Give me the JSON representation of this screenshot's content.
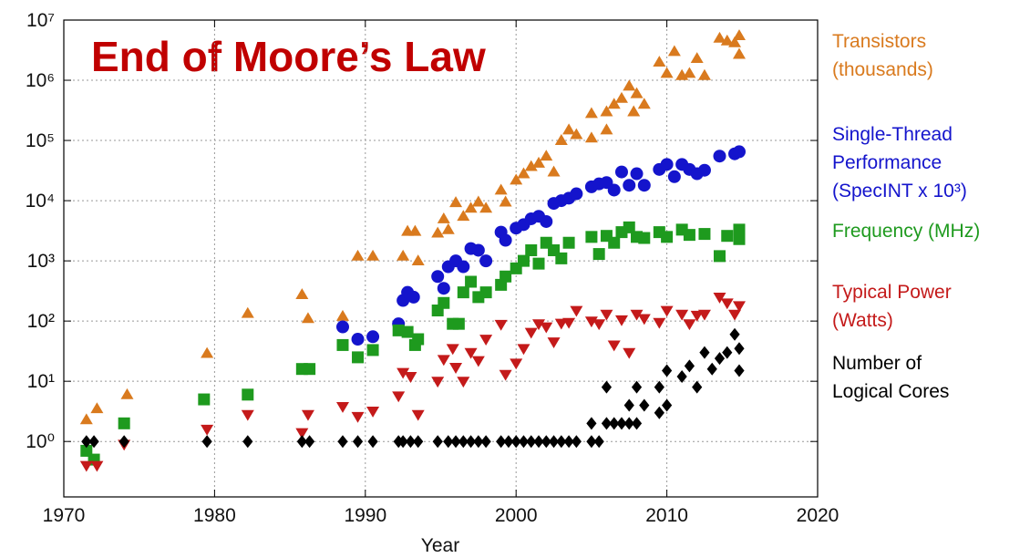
{
  "chart_data": {
    "type": "scatter",
    "annotation": "End of Moore’s Law",
    "xlabel": "Year",
    "xlim": [
      1970,
      2020
    ],
    "xticks": [
      1970,
      1980,
      1990,
      2000,
      2010,
      2020
    ],
    "log_y": true,
    "grid": true,
    "ylim": [
      0.12,
      10000000
    ],
    "yticks": [
      {
        "value": 1,
        "label": "10⁰"
      },
      {
        "value": 10,
        "label": "10¹"
      },
      {
        "value": 100,
        "label": "10²"
      },
      {
        "value": 1000,
        "label": "10³"
      },
      {
        "value": 10000,
        "label": "10⁴"
      },
      {
        "value": 100000,
        "label": "10⁵"
      },
      {
        "value": 1000000,
        "label": "10⁶"
      },
      {
        "value": 10000000,
        "label": "10⁷"
      }
    ],
    "series": [
      {
        "name": "Transistors\n(thousands)",
        "color": "#d97a1e",
        "marker": "triangle-up",
        "x": [
          1971.5,
          1972.2,
          1974.2,
          1979.5,
          1982.2,
          1985.8,
          1986.2,
          1988.5,
          1989.5,
          1990.5,
          1992.5,
          1992.8,
          1993.3,
          1993.5,
          1994.8,
          1995.2,
          1995.5,
          1996,
          1996.5,
          1997,
          1997.5,
          1998,
          1999,
          1999.3,
          2000,
          2000.5,
          2001,
          2001.5,
          2002,
          2002.5,
          2003,
          2003.5,
          2004,
          2005,
          2005,
          2006,
          2006,
          2006.5,
          2007,
          2007.5,
          2007.8,
          2008,
          2008.5,
          2009.5,
          2010,
          2010.5,
          2011,
          2011.5,
          2012,
          2012.5,
          2013.5,
          2014,
          2014.5,
          2014.8,
          2014.8
        ],
        "values": [
          2.3,
          3.5,
          6,
          29,
          134,
          275,
          110,
          120,
          1200,
          1200,
          1200,
          3100,
          3100,
          1000,
          2900,
          5000,
          3300,
          9300,
          5500,
          7500,
          9500,
          7500,
          15000,
          9500,
          22000,
          28000,
          37000,
          42000,
          55000,
          30000,
          100000,
          150000,
          125000,
          280000,
          110000,
          300000,
          150000,
          400000,
          500000,
          800000,
          300000,
          600000,
          400000,
          2000000,
          1300000,
          3000000,
          1200000,
          1300000,
          2300000,
          1200000,
          5000000,
          4500000,
          4200000,
          5500000,
          2700000
        ]
      },
      {
        "name": "Single-Thread\nPerformance\n(SpecINT x 10³)",
        "color": "#1414cc",
        "marker": "circle",
        "x": [
          1988.5,
          1989.5,
          1990.5,
          1992.2,
          1992.5,
          1992.8,
          1993.2,
          1994.8,
          1995.2,
          1995.5,
          1996,
          1996.5,
          1997,
          1997.5,
          1998,
          1999,
          1999.3,
          2000,
          2000.5,
          2001,
          2001.5,
          2002,
          2002.5,
          2003,
          2003.5,
          2004,
          2005,
          2005.5,
          2006,
          2006.5,
          2007,
          2007.5,
          2008,
          2008.5,
          2009.5,
          2010,
          2010.5,
          2011,
          2011.5,
          2012,
          2012.5,
          2013.5,
          2014.5,
          2014.8
        ],
        "values": [
          80,
          50,
          55,
          90,
          220,
          300,
          250,
          550,
          350,
          800,
          1000,
          800,
          1600,
          1500,
          1000,
          3000,
          2200,
          3500,
          4000,
          5000,
          5500,
          4500,
          9000,
          10000,
          11000,
          13000,
          17000,
          19000,
          20000,
          15000,
          30000,
          18000,
          28000,
          18000,
          33000,
          40000,
          25000,
          40000,
          33000,
          28000,
          32000,
          55000,
          60000,
          65000
        ]
      },
      {
        "name": "Frequency (MHz)",
        "color": "#1e9a1e",
        "marker": "square",
        "x": [
          1971.5,
          1972,
          1974,
          1979.3,
          1982.2,
          1985.8,
          1986.3,
          1988.5,
          1989.5,
          1990.5,
          1992.2,
          1992.8,
          1993.3,
          1993.5,
          1994.8,
          1995.2,
          1995.8,
          1996.2,
          1996.5,
          1997,
          1997.5,
          1998,
          1999,
          1999.3,
          2000,
          2000.5,
          2001,
          2001.5,
          2002,
          2002.5,
          2003,
          2003.5,
          2005,
          2005.5,
          2006,
          2006.5,
          2007,
          2007.5,
          2008,
          2008.5,
          2009.5,
          2010,
          2011,
          2011.5,
          2012.5,
          2013.5,
          2014,
          2014.8,
          2014.8
        ],
        "values": [
          0.7,
          0.5,
          2,
          5,
          6,
          16,
          16,
          40,
          25,
          33,
          70,
          66,
          40,
          50,
          150,
          200,
          90,
          90,
          300,
          450,
          250,
          300,
          400,
          550,
          750,
          1000,
          1500,
          900,
          2000,
          1500,
          1100,
          2000,
          2500,
          1300,
          2600,
          2000,
          3000,
          3600,
          2500,
          2400,
          3000,
          2500,
          3300,
          2700,
          2800,
          1200,
          2600,
          3300,
          2300
        ]
      },
      {
        "name": "Typical Power\n(Watts)",
        "color": "#c41a1a",
        "marker": "triangle-down",
        "x": [
          1971.5,
          1972.2,
          1974,
          1979.5,
          1982.2,
          1985.8,
          1986.2,
          1988.5,
          1989.5,
          1990.5,
          1992.2,
          1992.5,
          1993,
          1993.5,
          1994.8,
          1995.2,
          1995.8,
          1996,
          1996.5,
          1997,
          1997.5,
          1998,
          1999,
          1999.3,
          2000,
          2000.5,
          2001,
          2001.5,
          2002,
          2002.5,
          2003,
          2003.5,
          2004,
          2005,
          2005.5,
          2006,
          2006.5,
          2007,
          2007.5,
          2008,
          2008.5,
          2009.5,
          2010,
          2011,
          2011.5,
          2012,
          2012.5,
          2013.5,
          2014,
          2014.5,
          2014.8
        ],
        "values": [
          0.4,
          0.4,
          0.9,
          1.6,
          2.8,
          1.4,
          2.8,
          3.8,
          2.6,
          3.2,
          5.7,
          14,
          12,
          2.8,
          10,
          23,
          35,
          17,
          10,
          30,
          22,
          50,
          88,
          13,
          20,
          35,
          65,
          90,
          80,
          45,
          92,
          95,
          150,
          100,
          90,
          130,
          40,
          105,
          30,
          130,
          110,
          95,
          150,
          130,
          90,
          125,
          130,
          250,
          200,
          130,
          180
        ]
      },
      {
        "name": "Number of\nLogical Cores",
        "color": "#000000",
        "marker": "diamond",
        "x": [
          1971.5,
          1972,
          1974,
          1979.5,
          1982.2,
          1985.8,
          1986.3,
          1988.5,
          1989.5,
          1990.5,
          1992.2,
          1992.5,
          1993,
          1993.5,
          1994.8,
          1995.5,
          1996,
          1996.5,
          1997,
          1997.5,
          1998,
          1999,
          1999.5,
          2000,
          2000.5,
          2001,
          2001.5,
          2002,
          2002.5,
          2003,
          2003.5,
          2004,
          2005,
          2005,
          2005.5,
          2006,
          2006,
          2006.5,
          2007,
          2007.5,
          2007.5,
          2008,
          2008,
          2008.5,
          2009.5,
          2009.5,
          2010,
          2010,
          2011,
          2011.5,
          2012,
          2012.5,
          2013,
          2013.5,
          2014,
          2014.5,
          2014.8,
          2014.8
        ],
        "values": [
          1,
          1,
          1,
          1,
          1,
          1,
          1,
          1,
          1,
          1,
          1,
          1,
          1,
          1,
          1,
          1,
          1,
          1,
          1,
          1,
          1,
          1,
          1,
          1,
          1,
          1,
          1,
          1,
          1,
          1,
          1,
          1,
          1,
          2,
          1,
          2,
          8,
          2,
          2,
          2,
          4,
          2,
          8,
          4,
          3,
          8,
          4,
          15,
          12,
          18,
          8,
          30,
          16,
          24,
          30,
          60,
          35,
          15
        ]
      }
    ]
  }
}
